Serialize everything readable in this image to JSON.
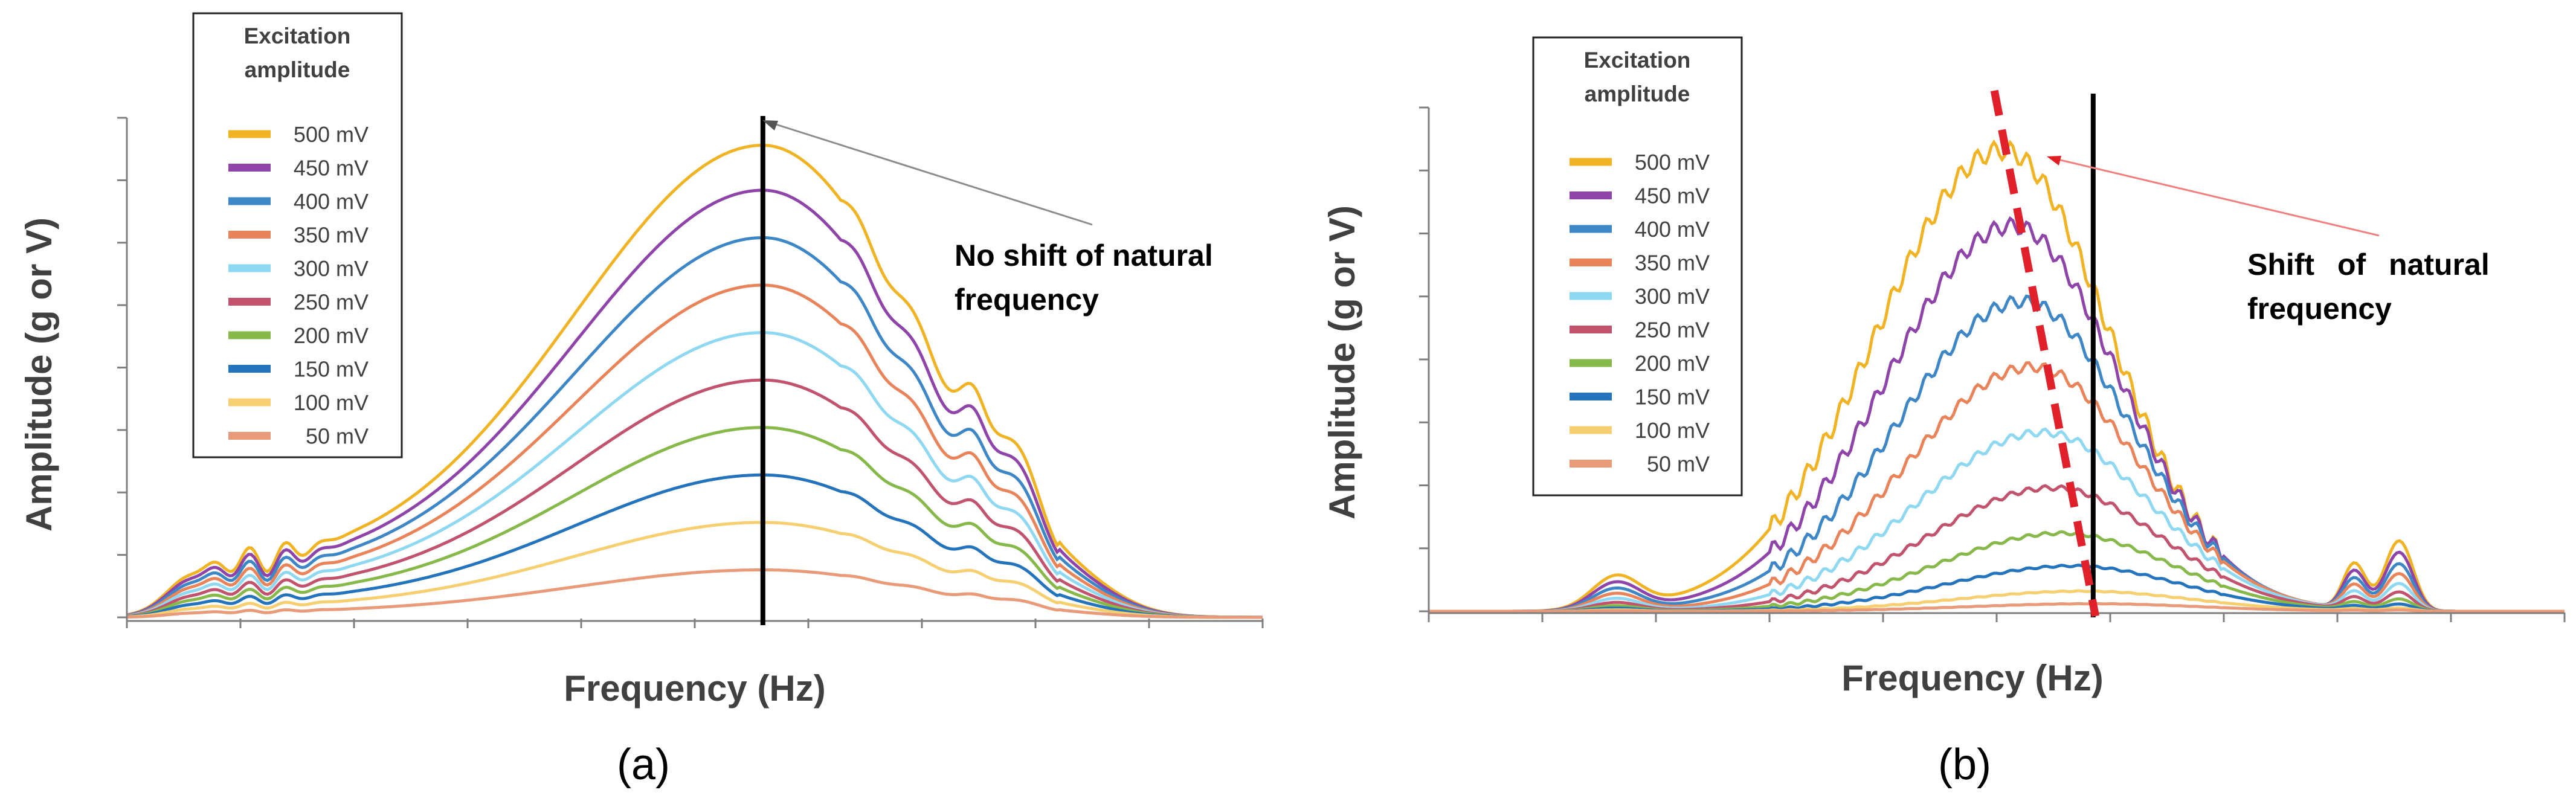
{
  "chart_data": [
    {
      "type": "line",
      "panel_label": "(a)",
      "xlabel": "Frequency (Hz)",
      "ylabel": "Amplitude (g or V)",
      "legend_title": [
        "Excitation",
        "amplitude"
      ],
      "legend_position": "top-left",
      "annotation": [
        "No shift of natural",
        "frequency"
      ],
      "marker_line": "natural frequency (fixed)",
      "x_range": [
        0,
        1
      ],
      "y_range": [
        0,
        1
      ],
      "peak_x": 0.56,
      "peak_shift": false,
      "series": [
        {
          "name": "500 mV",
          "color": "#F0B323",
          "peak": 0.945
        },
        {
          "name": "450 mV",
          "color": "#8E44A8",
          "peak": 0.855
        },
        {
          "name": "400 mV",
          "color": "#3E87C6",
          "peak": 0.76
        },
        {
          "name": "350 mV",
          "color": "#E8835A",
          "peak": 0.665
        },
        {
          "name": "300 mV",
          "color": "#8ED8F2",
          "peak": 0.57
        },
        {
          "name": "250 mV",
          "color": "#C2536E",
          "peak": 0.475
        },
        {
          "name": "200 mV",
          "color": "#86B84A",
          "peak": 0.38
        },
        {
          "name": "150 mV",
          "color": "#2473BD",
          "peak": 0.285
        },
        {
          "name": "100 mV",
          "color": "#F5CF70",
          "peak": 0.19
        },
        {
          "name": "50 mV",
          "color": "#E99A78",
          "peak": 0.095
        }
      ]
    },
    {
      "type": "line",
      "panel_label": "(b)",
      "xlabel": "Frequency (Hz)",
      "ylabel": "Amplitude (g or V)",
      "legend_title": [
        "Excitation",
        "amplitude"
      ],
      "legend_position": "top-left",
      "annotation": [
        "Shift of natural",
        "frequency"
      ],
      "marker_line": "natural frequency (reference)",
      "trend_line": "peak shift (red dashed)",
      "x_range": [
        0,
        1
      ],
      "y_range": [
        0,
        1
      ],
      "peak_x_range": [
        0.505,
        0.585
      ],
      "peak_shift": true,
      "series": [
        {
          "name": "500 mV",
          "color": "#F0B323",
          "peak": 0.915
        },
        {
          "name": "450 mV",
          "color": "#8E44A8",
          "peak": 0.765
        },
        {
          "name": "400 mV",
          "color": "#3E87C6",
          "peak": 0.615
        },
        {
          "name": "350 mV",
          "color": "#E8835A",
          "peak": 0.485
        },
        {
          "name": "300 mV",
          "color": "#8ED8F2",
          "peak": 0.355
        },
        {
          "name": "250 mV",
          "color": "#C2536E",
          "peak": 0.245
        },
        {
          "name": "200 mV",
          "color": "#86B84A",
          "peak": 0.155
        },
        {
          "name": "150 mV",
          "color": "#2473BD",
          "peak": 0.09
        },
        {
          "name": "100 mV",
          "color": "#F5CF70",
          "peak": 0.04
        },
        {
          "name": "50 mV",
          "color": "#E99A78",
          "peak": 0.015
        }
      ]
    }
  ]
}
